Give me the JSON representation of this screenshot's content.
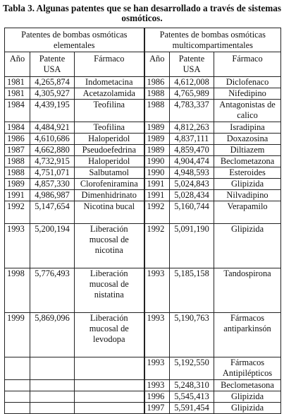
{
  "title": "Tabla 3. Algunas patentes que se han desarrollado a través de sistemas osmóticos.",
  "groups": [
    "Patentes de bombas osmóticas elementales",
    "Patentes de bombas osmóticas multicompartimentales"
  ],
  "columns": [
    "Año",
    "Patente USA",
    "Fármaco",
    "Año",
    "Patente USA",
    "Fármaco"
  ],
  "rows": [
    [
      "1981",
      "4,265,874",
      "Indometacina",
      "1986",
      "4,612,008",
      "Diclofenaco"
    ],
    [
      "1981",
      "4,305,927",
      "Acetazolamida",
      "1988",
      "4,765,989",
      "Nifedipino"
    ],
    [
      "1984",
      "4,439,195",
      "Teofilina",
      "1988",
      "4,783,337",
      "Antagonistas de calico"
    ],
    [
      "1984",
      "4,484,921",
      "Teofilina",
      "1989",
      "4,812,263",
      "Isradipina"
    ],
    [
      "1986",
      "4,610,686",
      "Haloperidol",
      "1989",
      "4,837,111",
      "Doxazosina"
    ],
    [
      "1987",
      "4,662,880",
      "Pseudoefedrina",
      "1989",
      "4,859,470",
      "Diltiazem"
    ],
    [
      "1988",
      "4,732,915",
      "Haloperidol",
      "1990",
      "4,904,474",
      "Beclometazona"
    ],
    [
      "1988",
      "4,751,071",
      "Salbutamol",
      "1990",
      "4,948,593",
      "Esteroides"
    ],
    [
      "1989",
      "4,857,330",
      "Clorofeniramina",
      "1991",
      "5,024,843",
      "Glipizida"
    ],
    [
      "1991",
      "4,986,987",
      "Dimenhidrinato",
      "1991",
      "5,028,434",
      "Nilvadipino"
    ],
    [
      "1992",
      "5,147,654",
      "Nicotina bucal",
      "1992",
      "5,160,744",
      "Verapamilo"
    ],
    [
      "1993",
      "5,200,194",
      "Liberación mucosal de nicotina",
      "1992",
      "5,091,190",
      "Glipizida"
    ],
    [
      "1998",
      "5,776,493",
      "Liberación mucosal de nistatina",
      "1993",
      "5,185,158",
      "Tandospirona"
    ],
    [
      "1999",
      "5,869,096",
      "Liberación mucosal de levodopa",
      "1993",
      "5,190,763",
      "Fármacos antiparkinsón"
    ],
    [
      "",
      "",
      "",
      "1993",
      "5,192,550",
      "Fármacos Antipilépticos"
    ],
    [
      "",
      "",
      "",
      "1993",
      "5,248,310",
      "Beclometasona"
    ],
    [
      "",
      "",
      "",
      "1996",
      "5,545,413",
      "Glipizida"
    ],
    [
      "",
      "",
      "",
      "1997",
      "5,591,454",
      "Glipizida"
    ]
  ]
}
